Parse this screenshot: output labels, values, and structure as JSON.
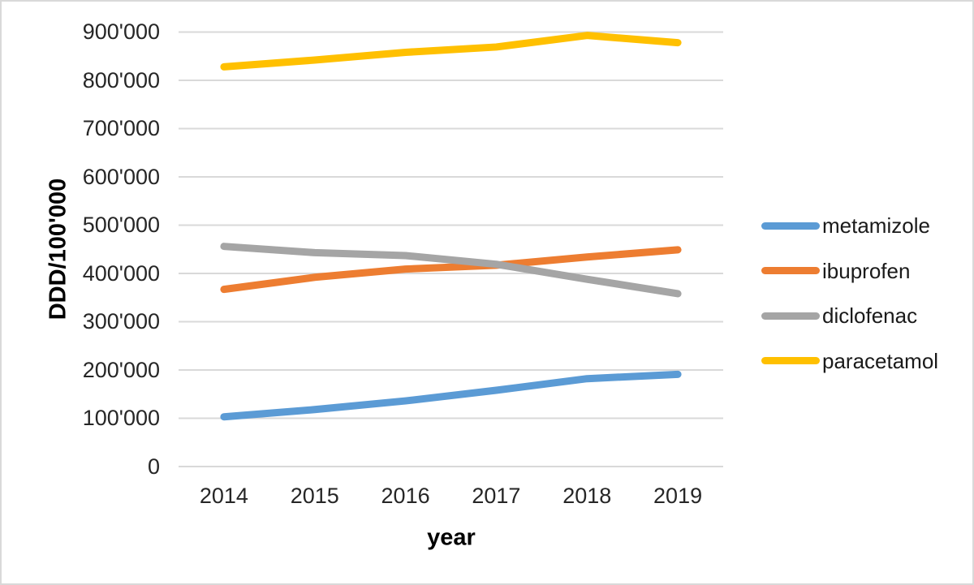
{
  "chart_data": {
    "type": "line",
    "categories": [
      "2014",
      "2015",
      "2016",
      "2017",
      "2018",
      "2019"
    ],
    "series": [
      {
        "name": "metamizole",
        "color": "#5B9BD5",
        "values": [
          103000,
          118000,
          136000,
          158000,
          182000,
          191000
        ]
      },
      {
        "name": "ibuprofen",
        "color": "#ED7D31",
        "values": [
          367000,
          392000,
          409000,
          417000,
          434000,
          449000
        ]
      },
      {
        "name": "diclofenac",
        "color": "#A5A5A5",
        "values": [
          456000,
          443000,
          437000,
          419000,
          388000,
          358000
        ]
      },
      {
        "name": "paracetamol",
        "color": "#FFC000",
        "values": [
          828000,
          842000,
          858000,
          869000,
          893000,
          878000
        ]
      }
    ],
    "title": "",
    "xlabel": "year",
    "ylabel": "DDD/100'000",
    "ylim": [
      0,
      900000
    ],
    "y_tick_step": 100000,
    "y_tick_labels": [
      "0",
      "100'000",
      "200'000",
      "300'000",
      "400'000",
      "500'000",
      "600'000",
      "700'000",
      "800'000",
      "900'000"
    ],
    "grid": true,
    "gridline_color": "#D9D9D9",
    "legend_position": "right"
  }
}
